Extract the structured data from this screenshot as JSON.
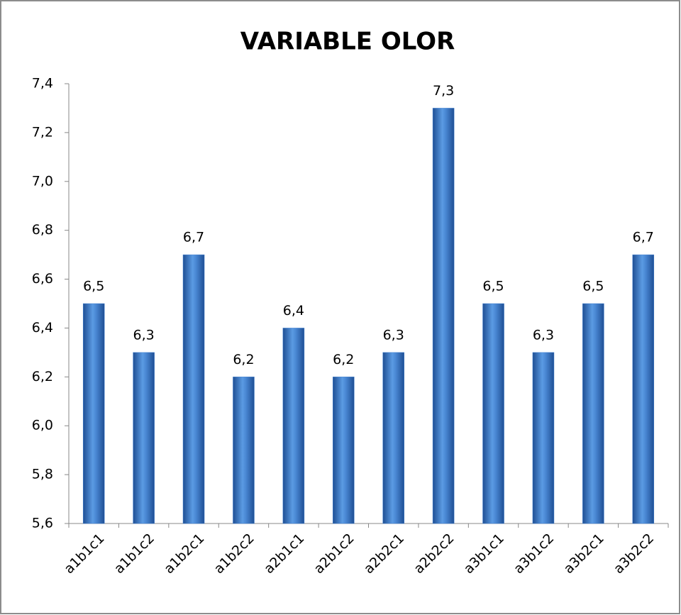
{
  "chart_data": {
    "type": "bar",
    "title": "VARIABLE OLOR",
    "categories": [
      "a1b1c1",
      "a1b1c2",
      "a1b2c1",
      "a1b2c2",
      "a2b1c1",
      "a2b1c2",
      "a2b2c1",
      "a2b2c2",
      "a3b1c1",
      "a3b1c2",
      "a3b2c1",
      "a3b2c2"
    ],
    "values": [
      6.5,
      6.3,
      6.7,
      6.2,
      6.4,
      6.2,
      6.3,
      7.3,
      6.5,
      6.3,
      6.5,
      6.7
    ],
    "value_labels": [
      "6,5",
      "6,3",
      "6,7",
      "6,2",
      "6,4",
      "6,2",
      "6,3",
      "7,3",
      "6,5",
      "6,3",
      "6,5",
      "6,7"
    ],
    "color": "#3f7fd0",
    "ylim": [
      5.6,
      7.4
    ],
    "yticks": [
      {
        "value": 5.6,
        "label": "5,6"
      },
      {
        "value": 5.8,
        "label": "5,8"
      },
      {
        "value": 6.0,
        "label": "6,0"
      },
      {
        "value": 6.2,
        "label": "6,2"
      },
      {
        "value": 6.4,
        "label": "6,4"
      },
      {
        "value": 6.6,
        "label": "6,6"
      },
      {
        "value": 6.8,
        "label": "6,8"
      },
      {
        "value": 7.0,
        "label": "7,0"
      },
      {
        "value": 7.2,
        "label": "7,2"
      },
      {
        "value": 7.4,
        "label": "7,4"
      }
    ],
    "grid": false
  }
}
